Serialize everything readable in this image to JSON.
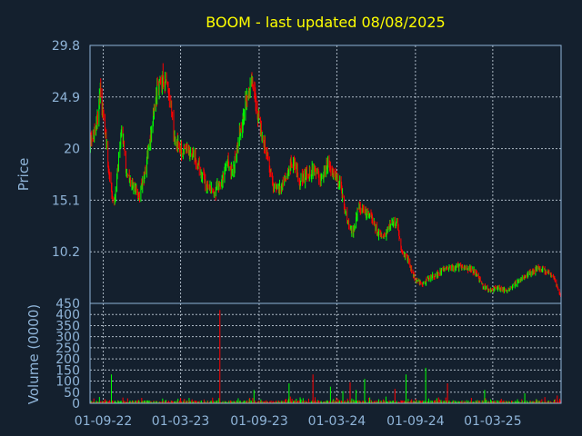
{
  "chart_data": {
    "type": "candlestick",
    "title": "BOOM - last updated 08/08/2025",
    "ylabel_price": "Price",
    "ylabel_volume": "Volume (0000)",
    "price_ylim": [
      5.3,
      29.8
    ],
    "price_ticks": [
      "29.8",
      "24.9",
      "20",
      "15.1",
      "10.2"
    ],
    "volume_ylim": [
      0,
      450
    ],
    "volume_ticks": [
      "450",
      "400",
      "350",
      "300",
      "250",
      "200",
      "150",
      "100",
      "50",
      "0"
    ],
    "x_ticks": [
      "01-09-22",
      "01-03-23",
      "01-09-23",
      "01-03-24",
      "01-09-24",
      "01-03-25"
    ],
    "x_range": [
      "2022-08-01",
      "2025-08-08"
    ],
    "grid": true,
    "colors": {
      "up": "#00ff00",
      "down": "#ff0000",
      "title": "#ffff00",
      "axis": "#8fb4d8",
      "background": "#14202e"
    },
    "price_path": [
      [
        "2022-08-01",
        20.5
      ],
      [
        "2022-08-15",
        22.0
      ],
      [
        "2022-08-25",
        25.5
      ],
      [
        "2022-09-05",
        22.0
      ],
      [
        "2022-09-15",
        17.5
      ],
      [
        "2022-09-25",
        14.5
      ],
      [
        "2022-10-05",
        18.0
      ],
      [
        "2022-10-15",
        22.0
      ],
      [
        "2022-10-25",
        17.5
      ],
      [
        "2022-11-10",
        16.5
      ],
      [
        "2022-11-25",
        15.5
      ],
      [
        "2022-12-05",
        17.5
      ],
      [
        "2022-12-20",
        21.0
      ],
      [
        "2023-01-05",
        25.5
      ],
      [
        "2023-01-20",
        27.0
      ],
      [
        "2023-02-05",
        25.0
      ],
      [
        "2023-02-15",
        21.0
      ],
      [
        "2023-03-05",
        19.5
      ],
      [
        "2023-03-25",
        20.0
      ],
      [
        "2023-04-15",
        18.0
      ],
      [
        "2023-05-01",
        16.5
      ],
      [
        "2023-05-20",
        15.8
      ],
      [
        "2023-06-05",
        17.0
      ],
      [
        "2023-06-20",
        18.5
      ],
      [
        "2023-07-01",
        17.5
      ],
      [
        "2023-07-20",
        22.0
      ],
      [
        "2023-08-01",
        24.5
      ],
      [
        "2023-08-15",
        26.5
      ],
      [
        "2023-08-25",
        24.0
      ],
      [
        "2023-09-10",
        21.0
      ],
      [
        "2023-09-25",
        18.0
      ],
      [
        "2023-10-05",
        16.5
      ],
      [
        "2023-10-20",
        16.2
      ],
      [
        "2023-11-05",
        17.5
      ],
      [
        "2023-11-20",
        19.0
      ],
      [
        "2023-12-05",
        17.0
      ],
      [
        "2023-12-20",
        17.5
      ],
      [
        "2024-01-10",
        18.0
      ],
      [
        "2024-01-25",
        17.0
      ],
      [
        "2024-02-10",
        18.5
      ],
      [
        "2024-02-25",
        17.5
      ],
      [
        "2024-03-10",
        16.5
      ],
      [
        "2024-03-25",
        13.0
      ],
      [
        "2024-04-10",
        12.0
      ],
      [
        "2024-04-20",
        14.5
      ],
      [
        "2024-05-05",
        14.0
      ],
      [
        "2024-05-20",
        13.5
      ],
      [
        "2024-06-05",
        12.0
      ],
      [
        "2024-06-20",
        11.5
      ],
      [
        "2024-07-05",
        13.0
      ],
      [
        "2024-07-20",
        13.0
      ],
      [
        "2024-08-01",
        10.0
      ],
      [
        "2024-08-15",
        9.5
      ],
      [
        "2024-09-01",
        7.5
      ],
      [
        "2024-09-20",
        7.2
      ],
      [
        "2024-10-05",
        7.8
      ],
      [
        "2024-10-20",
        8.0
      ],
      [
        "2024-11-05",
        8.5
      ],
      [
        "2024-11-25",
        8.7
      ],
      [
        "2024-12-10",
        8.8
      ],
      [
        "2025-01-01",
        8.7
      ],
      [
        "2025-01-20",
        8.3
      ],
      [
        "2025-02-05",
        7.0
      ],
      [
        "2025-02-20",
        6.5
      ],
      [
        "2025-03-10",
        6.8
      ],
      [
        "2025-04-05",
        6.5
      ],
      [
        "2025-05-01",
        7.5
      ],
      [
        "2025-05-20",
        8.0
      ],
      [
        "2025-06-10",
        8.5
      ],
      [
        "2025-07-01",
        8.5
      ],
      [
        "2025-07-20",
        7.8
      ],
      [
        "2025-08-08",
        6.0
      ]
    ],
    "volume_spikes": [
      [
        "2022-09-20",
        130
      ],
      [
        "2023-06-01",
        420
      ],
      [
        "2023-08-20",
        60
      ],
      [
        "2023-11-10",
        90
      ],
      [
        "2024-01-05",
        130
      ],
      [
        "2024-02-15",
        75
      ],
      [
        "2024-03-15",
        55
      ],
      [
        "2024-04-01",
        95
      ],
      [
        "2024-04-15",
        60
      ],
      [
        "2024-05-05",
        110
      ],
      [
        "2024-07-15",
        65
      ],
      [
        "2024-08-10",
        130
      ],
      [
        "2024-09-25",
        160
      ],
      [
        "2024-11-15",
        90
      ],
      [
        "2025-02-10",
        60
      ],
      [
        "2025-05-15",
        45
      ],
      [
        "2025-07-30",
        35
      ]
    ]
  }
}
